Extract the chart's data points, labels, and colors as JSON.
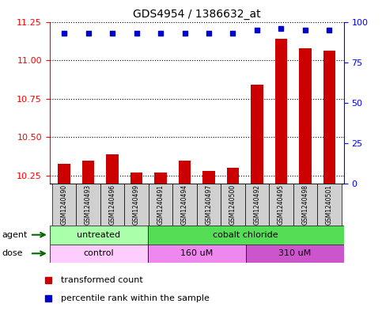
{
  "title": "GDS4954 / 1386632_at",
  "samples": [
    "GSM1240490",
    "GSM1240493",
    "GSM1240496",
    "GSM1240499",
    "GSM1240491",
    "GSM1240494",
    "GSM1240497",
    "GSM1240500",
    "GSM1240492",
    "GSM1240495",
    "GSM1240498",
    "GSM1240501"
  ],
  "transformed_count": [
    10.33,
    10.35,
    10.39,
    10.27,
    10.27,
    10.35,
    10.28,
    10.3,
    10.84,
    11.14,
    11.08,
    11.06
  ],
  "percentile_rank": [
    93,
    93,
    93,
    93,
    93,
    93,
    93,
    93,
    95,
    96,
    95,
    95
  ],
  "ylim_left": [
    10.2,
    11.25
  ],
  "ylim_right": [
    0,
    100
  ],
  "yticks_left": [
    10.25,
    10.5,
    10.75,
    11.0,
    11.25
  ],
  "yticks_right": [
    0,
    25,
    50,
    75,
    100
  ],
  "bar_color": "#cc0000",
  "scatter_color": "#0000cc",
  "agent_groups": [
    {
      "label": "untreated",
      "start": 0,
      "end": 4,
      "color": "#aaffaa"
    },
    {
      "label": "cobalt chloride",
      "start": 4,
      "end": 12,
      "color": "#55dd55"
    }
  ],
  "dose_groups": [
    {
      "label": "control",
      "start": 0,
      "end": 4,
      "color": "#ffccff"
    },
    {
      "label": "160 uM",
      "start": 4,
      "end": 8,
      "color": "#ee88ee"
    },
    {
      "label": "310 uM",
      "start": 8,
      "end": 12,
      "color": "#cc55cc"
    }
  ],
  "legend_items": [
    {
      "label": "transformed count",
      "color": "#cc0000"
    },
    {
      "label": "percentile rank within the sample",
      "color": "#0000cc"
    }
  ],
  "sample_box_color": "#d0d0d0",
  "arrow_color": "#006600"
}
